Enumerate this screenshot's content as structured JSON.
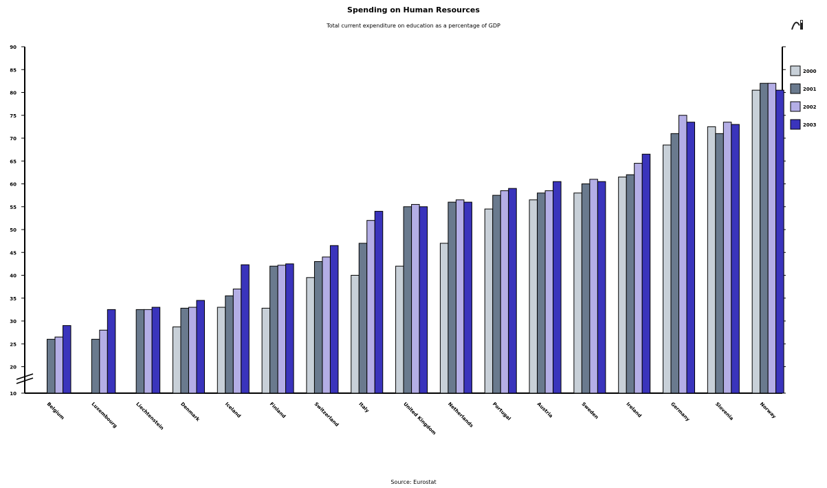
{
  "chart_data": {
    "type": "bar",
    "title": "Spending on Human Resources",
    "subtitle": "Total current expenditure on education as a percentage of GDP",
    "source": "Source: Eurostat",
    "categories": [
      "Belgium",
      "Luxembourg",
      "Liechtenstein",
      "Denmark",
      "Iceland",
      "Finland",
      "Switzerland",
      "Italy",
      "United Kingdom",
      "Netherlands",
      "Portugal",
      "Austria",
      "Sweden",
      "Ireland",
      "Germany",
      "Slovenia",
      "Norway"
    ],
    "series": [
      {
        "name": "2000",
        "color": "#c8d0d8",
        "values": [
          null,
          null,
          null,
          28.7,
          33.0,
          32.8,
          39.5,
          40.0,
          42.0,
          47.0,
          54.5,
          56.5,
          58.0,
          61.5,
          68.5,
          72.5,
          80.5
        ]
      },
      {
        "name": "2001",
        "color": "#6a7a8e",
        "values": [
          26.0,
          26.0,
          32.5,
          32.8,
          35.5,
          42.0,
          43.0,
          47.0,
          55.0,
          56.0,
          57.5,
          58.0,
          60.0,
          62.0,
          71.0,
          71.0,
          82.0
        ]
      },
      {
        "name": "2002",
        "color": "#b4aee6",
        "values": [
          26.5,
          28.0,
          32.5,
          33.0,
          37.0,
          42.2,
          44.0,
          52.0,
          55.5,
          56.5,
          58.5,
          58.5,
          61.0,
          64.5,
          75.0,
          73.5,
          82.0
        ]
      },
      {
        "name": "2003",
        "color": "#3a34bc",
        "values": [
          29.0,
          32.5,
          33.0,
          34.5,
          42.3,
          42.5,
          46.5,
          54.0,
          55.0,
          56.0,
          59.0,
          60.5,
          60.5,
          66.5,
          73.5,
          73.0,
          80.5
        ]
      }
    ],
    "yticks": [
      "10",
      "20",
      "25",
      "30",
      "35",
      "40",
      "45",
      "50",
      "55",
      "60",
      "65",
      "70",
      "75",
      "80",
      "85",
      "90"
    ],
    "ylim": [
      20,
      90
    ],
    "axis_break": true,
    "legend_position": "right",
    "xlabel": "",
    "ylabel": ""
  },
  "toolbar": {
    "tool_icon": "chart-tool-icon"
  }
}
